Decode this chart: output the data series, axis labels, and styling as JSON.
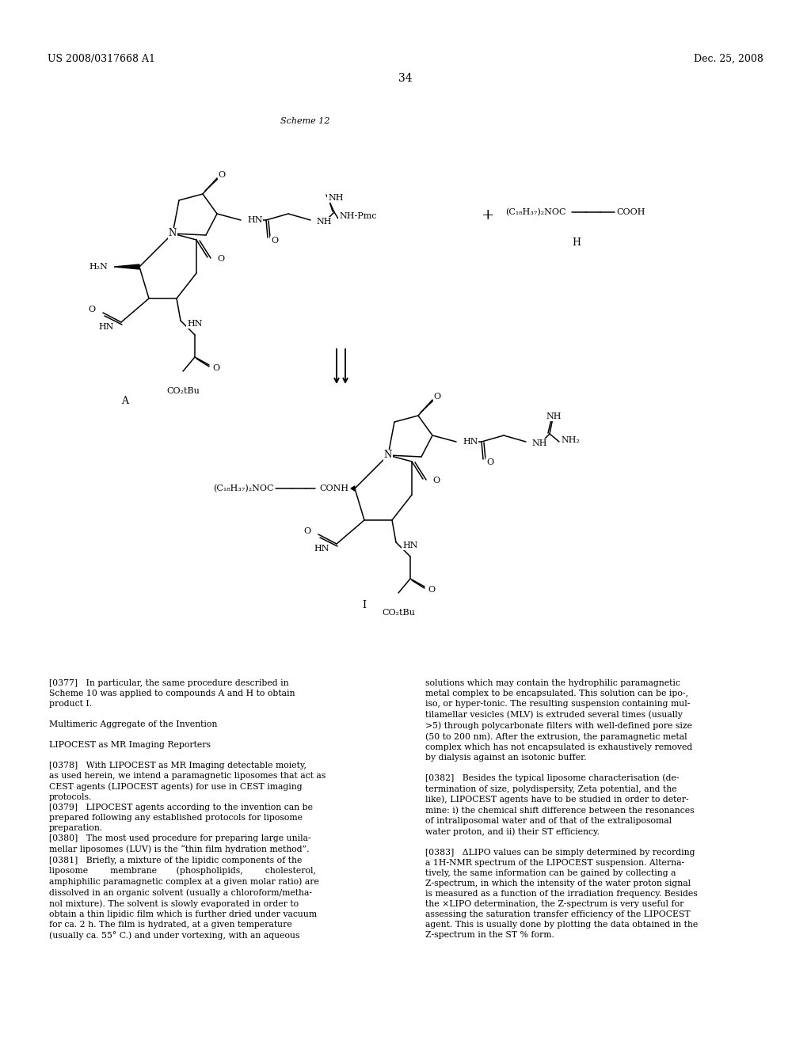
{
  "page_number": "34",
  "patent_left": "US 2008/0317668 A1",
  "patent_right": "Dec. 25, 2008",
  "scheme_label": "Scheme 12",
  "compound_A_label": "A",
  "compound_H_label": "H",
  "compound_I_label": "I",
  "background_color": "#ffffff",
  "text_color": "#000000",
  "body_text_left": "[0377]   In particular, the same procedure described in\nScheme 10 was applied to compounds A and H to obtain\nproduct I.\n\nMultimeric Aggregate of the Invention\n\nLIPOCEST as MR Imaging Reporters\n\n[0378]   With LIPOCEST as MR Imaging detectable moiety,\nas used herein, we intend a paramagnetic liposomes that act as\nCEST agents (LIPOCEST agents) for use in CEST imaging\nprotocols.\n[0379]   LIPOCEST agents according to the invention can be\nprepared following any established protocols for liposome\npreparation.\n[0380]   The most used procedure for preparing large unila-\nmellar liposomes (LUV) is the “thin film hydration method”.\n[0381]   Briefly, a mixture of the lipidic components of the\nliposome        membrane       (phospholipids,        cholesterol,\namphiphilic paramagnetic complex at a given molar ratio) are\ndissolved in an organic solvent (usually a chloroform/metha-\nnol mixture). The solvent is slowly evaporated in order to\nobtain a thin lipidic film which is further dried under vacuum\nfor ca. 2 h. The film is hydrated, at a given temperature\n(usually ca. 55° C.) and under vortexing, with an aqueous",
  "body_text_right": "solutions which may contain the hydrophilic paramagnetic\nmetal complex to be encapsulated. This solution can be ipo-,\niso, or hyper-tonic. The resulting suspension containing mul-\ntilamellar vesicles (MLV) is extruded several times (usually\n>5) through polycarbonate filters with well-defined pore size\n(50 to 200 nm). After the extrusion, the paramagnetic metal\ncomplex which has not encapsulated is exhaustively removed\nby dialysis against an isotonic buffer.\n\n[0382]   Besides the typical liposome characterisation (de-\ntermination of size, polydispersity, Zeta potential, and the\nlike), LIPOCEST agents have to be studied in order to deter-\nmine: i) the chemical shift difference between the resonances\nof intraliposomal water and of that of the extraliposomal\nwater proton, and ii) their ST efficiency.\n\n[0383]   ΔLIPO values can be simply determined by recording\na 1H-NMR spectrum of the LIPOCEST suspension. Alterna-\ntively, the same information can be gained by collecting a\nZ-spectrum, in which the intensity of the water proton signal\nis measured as a function of the irradiation frequency. Besides\nthe ×LIPO determination, the Z-spectrum is very useful for\nassessing the saturation transfer efficiency of the LIPOCEST\nagent. This is usually done by plotting the data obtained in the\nZ-spectrum in the ST % form."
}
